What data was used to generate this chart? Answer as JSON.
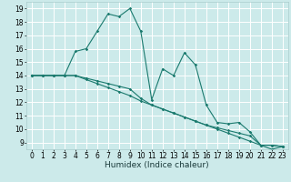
{
  "xlabel": "Humidex (Indice chaleur)",
  "bg_color": "#cceaea",
  "grid_color": "#ffffff",
  "line_color": "#1a7a6e",
  "xlim": [
    -0.5,
    23.5
  ],
  "ylim": [
    8.5,
    19.5
  ],
  "xticks": [
    0,
    1,
    2,
    3,
    4,
    5,
    6,
    7,
    8,
    9,
    10,
    11,
    12,
    13,
    14,
    15,
    16,
    17,
    18,
    19,
    20,
    21,
    22,
    23
  ],
  "yticks": [
    9,
    10,
    11,
    12,
    13,
    14,
    15,
    16,
    17,
    18,
    19
  ],
  "series1_x": [
    0,
    1,
    2,
    3,
    4,
    5,
    6,
    7,
    8,
    9,
    10,
    11,
    12,
    13,
    14,
    15,
    16,
    17,
    18,
    19,
    20,
    21,
    22,
    23
  ],
  "series1_y": [
    14.0,
    14.0,
    14.0,
    14.0,
    15.8,
    16.0,
    17.3,
    18.6,
    18.4,
    19.0,
    17.3,
    12.2,
    14.5,
    14.0,
    15.7,
    14.8,
    11.8,
    10.5,
    10.4,
    10.5,
    9.8,
    8.8,
    8.8,
    8.7
  ],
  "series2_x": [
    0,
    1,
    2,
    3,
    4,
    5,
    6,
    7,
    8,
    9,
    10,
    11,
    12,
    13,
    14,
    15,
    16,
    17,
    18,
    19,
    20,
    21,
    22,
    23
  ],
  "series2_y": [
    14.0,
    14.0,
    14.0,
    14.0,
    14.0,
    13.7,
    13.4,
    13.1,
    12.8,
    12.5,
    12.1,
    11.8,
    11.5,
    11.2,
    10.9,
    10.6,
    10.3,
    10.0,
    9.7,
    9.4,
    9.1,
    8.8,
    8.5,
    8.7
  ],
  "series3_x": [
    0,
    1,
    2,
    3,
    4,
    5,
    6,
    7,
    8,
    9,
    10,
    11,
    12,
    13,
    14,
    15,
    16,
    17,
    18,
    19,
    20,
    21,
    22,
    23
  ],
  "series3_y": [
    14.0,
    14.0,
    14.0,
    14.0,
    14.0,
    13.8,
    13.6,
    13.4,
    13.2,
    13.0,
    12.3,
    11.8,
    11.5,
    11.2,
    10.9,
    10.6,
    10.3,
    10.1,
    9.9,
    9.7,
    9.5,
    8.8,
    8.8,
    8.7
  ],
  "tick_fontsize": 5.5,
  "xlabel_fontsize": 6.5
}
